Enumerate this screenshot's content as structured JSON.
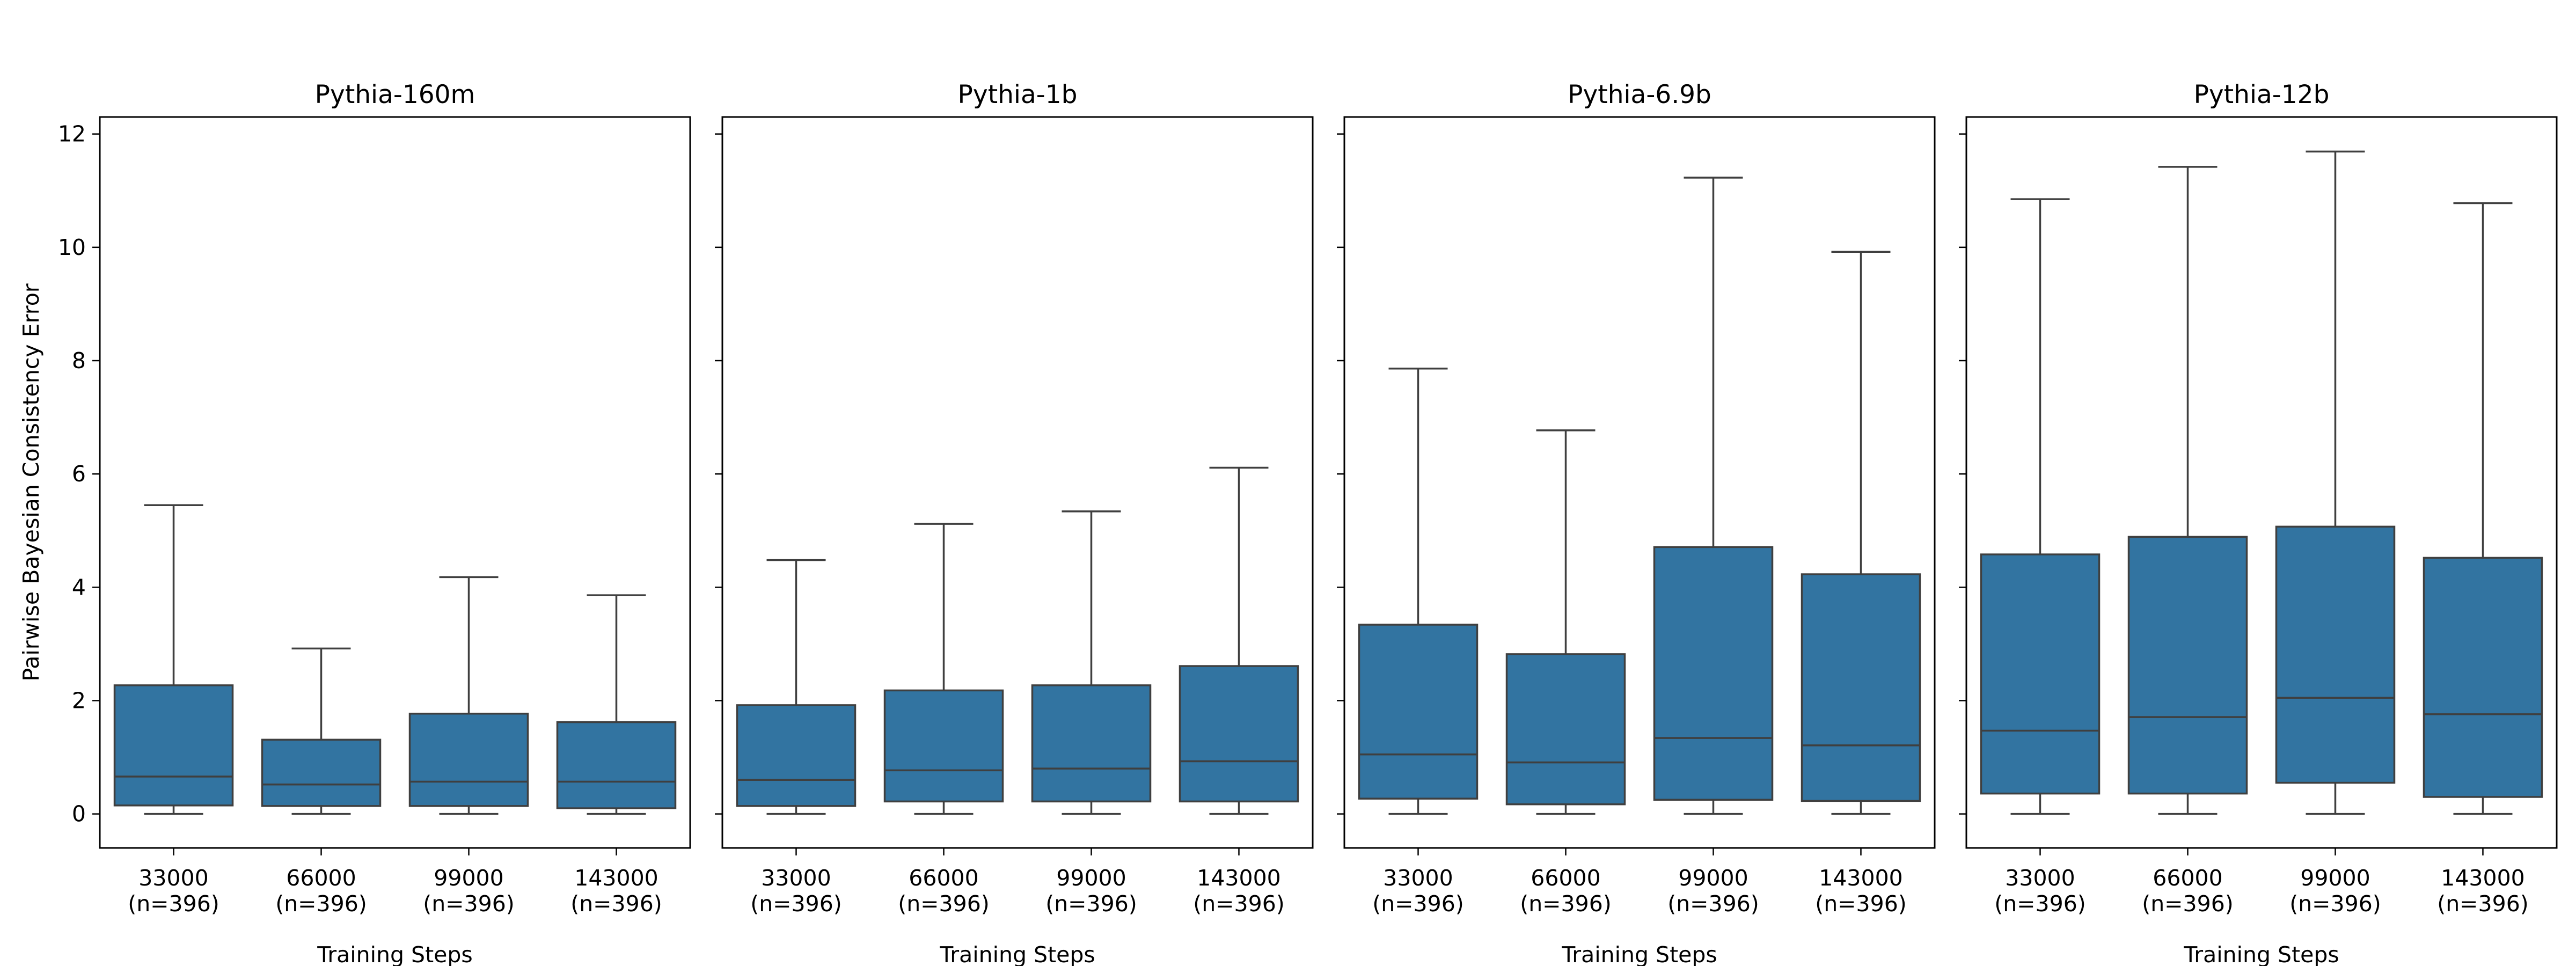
{
  "chart_data": {
    "type": "box",
    "ylabel": "Pairwise Bayesian Consistency Error",
    "xlabel": "Training Steps",
    "ylim": [
      -0.6,
      12.3
    ],
    "yticks": [
      "0",
      "2",
      "4",
      "6",
      "8",
      "10",
      "12"
    ],
    "categories": [
      "33000\n(n=396)",
      "66000\n(n=396)",
      "99000\n(n=396)",
      "143000\n(n=396)"
    ],
    "category_lines": [
      [
        "33000",
        "(n=396)"
      ],
      [
        "66000",
        "(n=396)"
      ],
      [
        "99000",
        "(n=396)"
      ],
      [
        "143000",
        "(n=396)"
      ]
    ],
    "box_color": "#3274a1",
    "line_color": "#3f3f3f",
    "panels": [
      {
        "title": "Pythia-160m",
        "boxes": [
          {
            "whislo": 0.0,
            "q1": 0.15,
            "med": 0.66,
            "q3": 2.27,
            "whishi": 5.45
          },
          {
            "whislo": 0.0,
            "q1": 0.14,
            "med": 0.52,
            "q3": 1.31,
            "whishi": 2.92
          },
          {
            "whislo": 0.0,
            "q1": 0.14,
            "med": 0.57,
            "q3": 1.77,
            "whishi": 4.18
          },
          {
            "whislo": 0.0,
            "q1": 0.1,
            "med": 0.57,
            "q3": 1.62,
            "whishi": 3.86
          }
        ]
      },
      {
        "title": "Pythia-1b",
        "boxes": [
          {
            "whislo": 0.0,
            "q1": 0.14,
            "med": 0.6,
            "q3": 1.92,
            "whishi": 4.48
          },
          {
            "whislo": 0.0,
            "q1": 0.22,
            "med": 0.77,
            "q3": 2.18,
            "whishi": 5.12
          },
          {
            "whislo": 0.0,
            "q1": 0.22,
            "med": 0.8,
            "q3": 2.27,
            "whishi": 5.34
          },
          {
            "whislo": 0.0,
            "q1": 0.22,
            "med": 0.93,
            "q3": 2.61,
            "whishi": 6.11
          }
        ]
      },
      {
        "title": "Pythia-6.9b",
        "boxes": [
          {
            "whislo": 0.0,
            "q1": 0.27,
            "med": 1.05,
            "q3": 3.34,
            "whishi": 7.86
          },
          {
            "whislo": 0.0,
            "q1": 0.17,
            "med": 0.91,
            "q3": 2.82,
            "whishi": 6.77
          },
          {
            "whislo": 0.0,
            "q1": 0.25,
            "med": 1.34,
            "q3": 4.71,
            "whishi": 11.23
          },
          {
            "whislo": 0.0,
            "q1": 0.23,
            "med": 1.21,
            "q3": 4.23,
            "whishi": 9.92
          }
        ]
      },
      {
        "title": "Pythia-12b",
        "boxes": [
          {
            "whislo": 0.0,
            "q1": 0.36,
            "med": 1.47,
            "q3": 4.58,
            "whishi": 10.85
          },
          {
            "whislo": 0.0,
            "q1": 0.36,
            "med": 1.71,
            "q3": 4.89,
            "whishi": 11.42
          },
          {
            "whislo": 0.0,
            "q1": 0.55,
            "med": 2.05,
            "q3": 5.07,
            "whishi": 11.69
          },
          {
            "whislo": 0.0,
            "q1": 0.3,
            "med": 1.76,
            "q3": 4.52,
            "whishi": 10.78
          }
        ]
      }
    ]
  }
}
